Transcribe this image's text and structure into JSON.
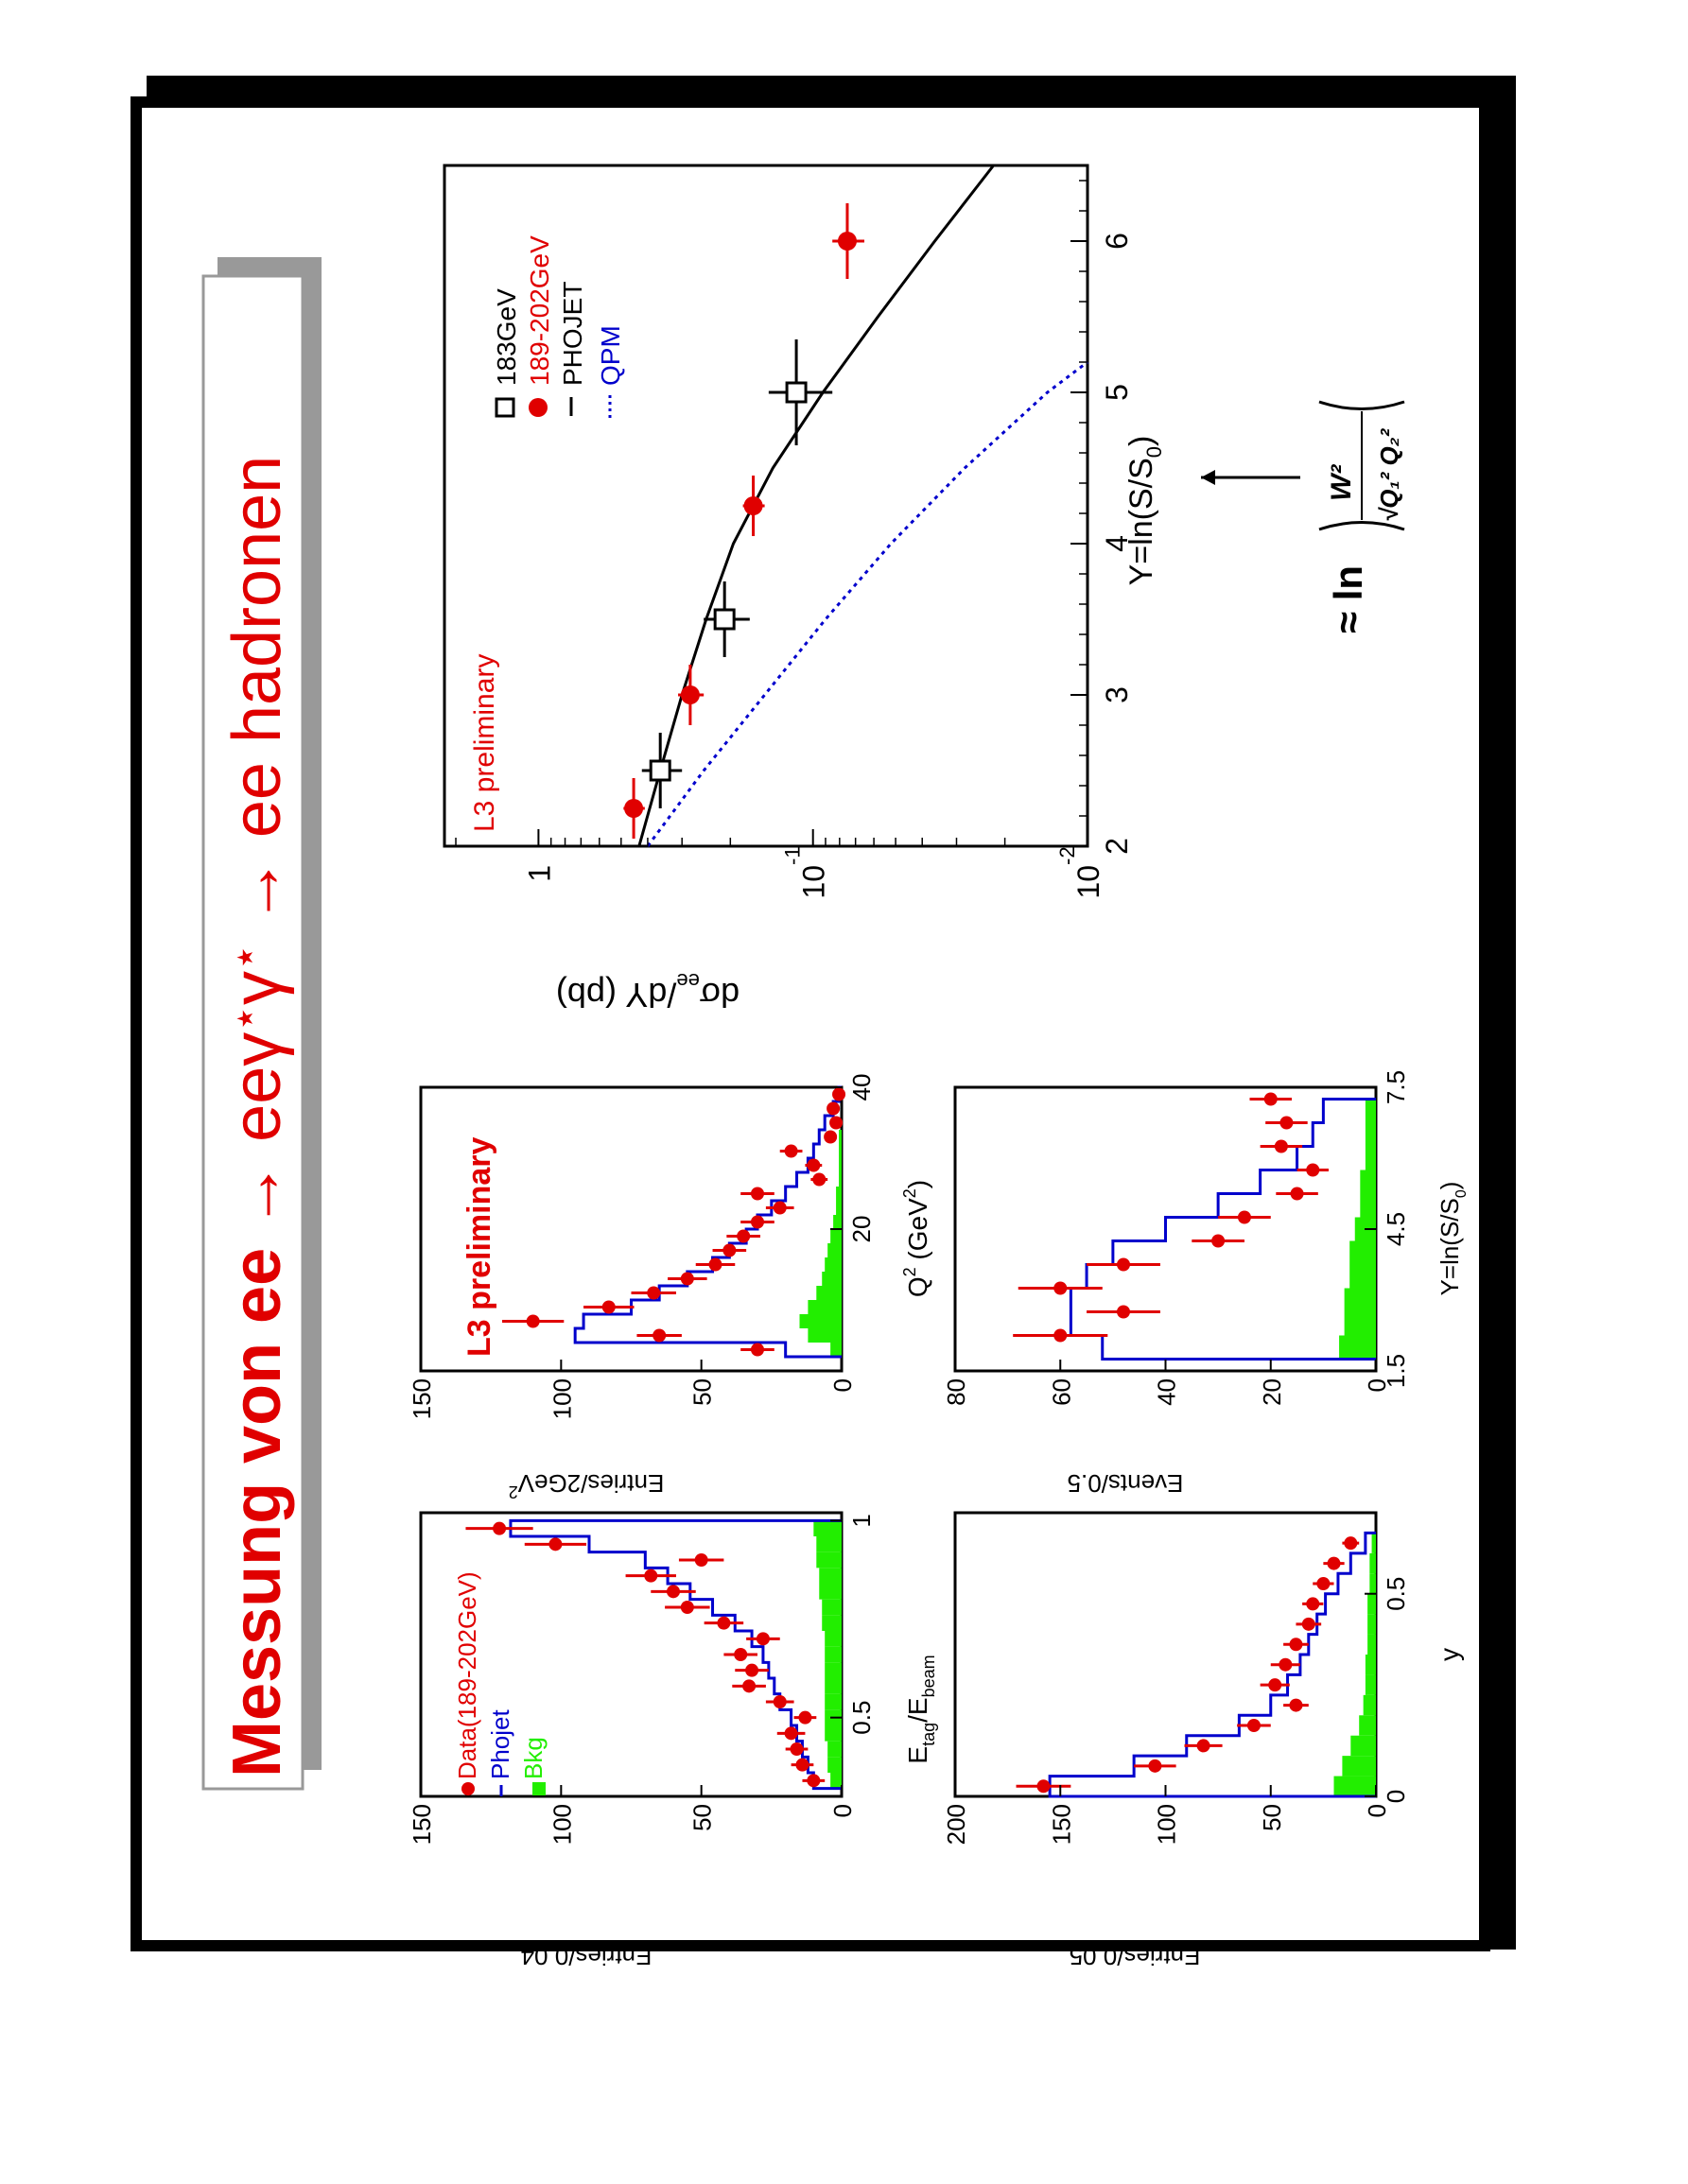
{
  "slide": {
    "title_part1": "Messung von ee ",
    "title_arrow1": "→",
    "title_part2": " eeγ",
    "title_star1": "⋆",
    "title_part3": "γ",
    "title_star2": "⋆",
    "title_arrow2": " → ",
    "title_part4": "ee hadronen",
    "approx_prefix": "≈ ln",
    "approx_numerator": "W²",
    "approx_denominator": "√Q₁² Q₂²",
    "colors": {
      "data": "#e00000",
      "phojet": "#0000cc",
      "bkg": "#22ee00",
      "frame": "#000000",
      "title_box_shadow": "#999999"
    }
  },
  "chart_data": [
    {
      "id": "etag",
      "type": "bar",
      "xlabel": "E",
      "xlabel_sub1": "tag",
      "xlabel_mid": "/E",
      "xlabel_sub2": "beam",
      "ylabel": "Entries/0.04",
      "xlim": [
        0.3,
        1.02
      ],
      "ylim": [
        0,
        150
      ],
      "xticks": [
        {
          "v": 0.5,
          "label": "0.5"
        },
        {
          "v": 1.0,
          "label": "1"
        }
      ],
      "yticks": [
        {
          "v": 0,
          "label": "0"
        },
        {
          "v": 50,
          "label": "50"
        },
        {
          "v": 100,
          "label": "100"
        },
        {
          "v": 150,
          "label": "150"
        }
      ],
      "legend": [
        {
          "marker": "dot",
          "label": "Data(189-202GeV)"
        },
        {
          "marker": "line",
          "label": "Phojet"
        },
        {
          "marker": "box",
          "label": "Bkg"
        }
      ],
      "data_x": [
        0.34,
        0.38,
        0.42,
        0.46,
        0.5,
        0.54,
        0.58,
        0.62,
        0.66,
        0.7,
        0.74,
        0.78,
        0.82,
        0.86,
        0.9,
        0.94,
        0.98
      ],
      "data_y": [
        10,
        14,
        16,
        18,
        13,
        22,
        33,
        32,
        36,
        28,
        42,
        55,
        60,
        68,
        50,
        102,
        122
      ],
      "data_err": [
        4,
        4,
        4,
        5,
        4,
        5,
        6,
        6,
        6,
        6,
        7,
        8,
        8,
        9,
        8,
        11,
        12
      ],
      "phojet_edges": [
        0.32,
        0.36,
        0.4,
        0.44,
        0.48,
        0.52,
        0.56,
        0.6,
        0.64,
        0.68,
        0.72,
        0.76,
        0.8,
        0.84,
        0.88,
        0.92,
        0.96,
        1.0
      ],
      "phojet_y": [
        10,
        12,
        14,
        16,
        18,
        22,
        24,
        26,
        28,
        32,
        38,
        46,
        54,
        62,
        70,
        90,
        118
      ],
      "bkg_y": [
        4,
        5,
        5,
        6,
        6,
        6,
        6,
        6,
        6,
        6,
        7,
        7,
        8,
        8,
        9,
        9,
        10
      ]
    },
    {
      "id": "q2",
      "type": "bar",
      "xlabel": "Q",
      "xlabel_sup": "2",
      "xlabel_rest": " (GeV",
      "xlabel_sup2": "2",
      "xlabel_end": ")",
      "ylabel": "Entries/2GeV",
      "ylabel_sup": "2",
      "annotation": "L3 preliminary",
      "xlim": [
        0,
        40
      ],
      "ylim": [
        0,
        150
      ],
      "xticks": [
        {
          "v": 20,
          "label": "20"
        },
        {
          "v": 40,
          "label": "40"
        }
      ],
      "yticks": [
        {
          "v": 0,
          "label": "0"
        },
        {
          "v": 50,
          "label": "50"
        },
        {
          "v": 100,
          "label": "100"
        },
        {
          "v": 150,
          "label": "150"
        }
      ],
      "data_x": [
        3,
        5,
        7,
        9,
        11,
        13,
        15,
        17,
        19,
        21,
        23,
        25,
        27,
        29,
        31,
        33,
        35,
        37,
        39
      ],
      "data_y": [
        30,
        65,
        110,
        83,
        67,
        55,
        45,
        40,
        35,
        30,
        22,
        30,
        8,
        10,
        18,
        4,
        2,
        3,
        1
      ],
      "data_err": [
        6,
        8,
        11,
        9,
        8,
        7,
        7,
        6,
        6,
        6,
        5,
        6,
        3,
        3,
        4,
        2,
        2,
        2,
        1
      ],
      "phojet_edges": [
        2,
        4,
        6,
        8,
        10,
        12,
        14,
        16,
        18,
        20,
        22,
        24,
        26,
        28,
        30,
        32,
        34,
        36,
        38,
        40
      ],
      "phojet_y": [
        20,
        95,
        92,
        75,
        65,
        55,
        46,
        40,
        34,
        30,
        25,
        20,
        16,
        12,
        10,
        8,
        6,
        3,
        1
      ],
      "bkg_y": [
        4,
        12,
        15,
        12,
        9,
        7,
        6,
        5,
        4,
        3,
        2,
        2,
        1,
        1,
        1,
        1,
        0,
        0,
        0
      ]
    },
    {
      "id": "ybj",
      "type": "bar",
      "xlabel": "y",
      "ylabel": "Entries/0.05",
      "xlim": [
        0,
        0.7
      ],
      "ylim": [
        0,
        200
      ],
      "xticks": [
        {
          "v": 0,
          "label": "0"
        },
        {
          "v": 0.5,
          "label": "0.5"
        }
      ],
      "yticks": [
        {
          "v": 0,
          "label": "0"
        },
        {
          "v": 50,
          "label": "50"
        },
        {
          "v": 100,
          "label": "100"
        },
        {
          "v": 150,
          "label": "150"
        },
        {
          "v": 200,
          "label": "200"
        }
      ],
      "data_x": [
        0.025,
        0.075,
        0.125,
        0.175,
        0.225,
        0.275,
        0.325,
        0.375,
        0.425,
        0.475,
        0.525,
        0.575,
        0.625
      ],
      "data_y": [
        158,
        105,
        82,
        58,
        38,
        48,
        43,
        38,
        32,
        30,
        25,
        20,
        12
      ],
      "data_err": [
        13,
        10,
        9,
        8,
        6,
        7,
        7,
        6,
        6,
        5,
        5,
        5,
        4
      ],
      "phojet_edges": [
        0,
        0.05,
        0.1,
        0.15,
        0.2,
        0.25,
        0.3,
        0.35,
        0.4,
        0.45,
        0.5,
        0.55,
        0.6,
        0.65
      ],
      "phojet_y": [
        155,
        115,
        90,
        65,
        50,
        42,
        36,
        32,
        28,
        24,
        18,
        12,
        5
      ],
      "bkg_y": [
        20,
        16,
        12,
        8,
        6,
        5,
        5,
        4,
        4,
        4,
        3,
        3,
        2
      ]
    },
    {
      "id": "ylog",
      "type": "bar",
      "xlabel": "Y=ln(S/S",
      "xlabel_sub": "0",
      "xlabel_end": ")",
      "ylabel": "Events/0.5",
      "xlim": [
        1.5,
        7.5
      ],
      "ylim": [
        0,
        80
      ],
      "xticks": [
        {
          "v": 1.5,
          "label": "1.5"
        },
        {
          "v": 4.5,
          "label": "4.5"
        },
        {
          "v": 7.5,
          "label": "7.5"
        }
      ],
      "yticks": [
        {
          "v": 0,
          "label": "0"
        },
        {
          "v": 20,
          "label": "20"
        },
        {
          "v": 40,
          "label": "40"
        },
        {
          "v": 60,
          "label": "60"
        },
        {
          "v": 80,
          "label": "80"
        }
      ],
      "data_x": [
        2.25,
        2.75,
        3.25,
        3.75,
        4.25,
        4.75,
        5.25,
        5.75,
        6.25,
        6.75,
        7.25
      ],
      "data_y": [
        60,
        48,
        60,
        48,
        30,
        25,
        15,
        12,
        18,
        17,
        20
      ],
      "data_err": [
        9,
        7,
        8,
        7,
        5,
        5,
        4,
        3,
        4,
        4,
        4
      ],
      "phojet_edges": [
        1.75,
        2.25,
        2.75,
        3.25,
        3.75,
        4.25,
        4.75,
        5.25,
        5.75,
        6.25,
        6.75,
        7.25
      ],
      "phojet_y": [
        52,
        58,
        58,
        55,
        50,
        40,
        30,
        22,
        15,
        12,
        10
      ],
      "bkg_y": [
        7,
        6,
        6,
        5,
        5,
        4,
        3,
        3,
        2,
        2,
        2
      ]
    },
    {
      "id": "xsec",
      "type": "scatter",
      "xlabel": "Y=ln(S/S",
      "xlabel_sub": "0",
      "xlabel_end": ")",
      "ylabel": "dσ",
      "ylabel_sub": "ee",
      "ylabel_end": "/dY (pb)",
      "annotation": "L3 preliminary",
      "scale": "log",
      "xlim": [
        2,
        6.5
      ],
      "ylim": [
        0.01,
        2.2
      ],
      "xticks": [
        {
          "v": 2,
          "label": "2"
        },
        {
          "v": 3,
          "label": "3"
        },
        {
          "v": 4,
          "label": "4"
        },
        {
          "v": 5,
          "label": "5"
        },
        {
          "v": 6,
          "label": "6"
        }
      ],
      "yticks": [
        {
          "v": 1,
          "label": "1",
          "exp": ""
        },
        {
          "v": 0.1,
          "label": "10",
          "exp": "-1"
        },
        {
          "v": 0.01,
          "label": "10",
          "exp": "-2"
        }
      ],
      "series": [
        {
          "name": "183GeV",
          "marker": "open-square",
          "x": [
            2.5,
            3.5,
            5.0
          ],
          "y": [
            0.36,
            0.21,
            0.115
          ],
          "yerr_lo": [
            0.06,
            0.04,
            0.03
          ],
          "yerr_hi": [
            0.06,
            0.04,
            0.03
          ],
          "xerr": [
            0.25,
            0.25,
            0.35
          ]
        },
        {
          "name": "189-202GeV",
          "marker": "filled-circle",
          "x": [
            2.25,
            3.0,
            4.25,
            6.0
          ],
          "y": [
            0.45,
            0.28,
            0.165,
            0.075
          ],
          "yerr_lo": [
            0.04,
            0.03,
            0.015,
            0.01
          ],
          "yerr_hi": [
            0.04,
            0.03,
            0.015,
            0.01
          ],
          "xerr": [
            0.2,
            0.2,
            0.2,
            0.25
          ]
        },
        {
          "name": "PHOJET",
          "marker": "solid-line",
          "x": [
            2.0,
            2.5,
            3.0,
            3.5,
            4.0,
            4.5,
            5.0,
            5.5,
            6.0,
            6.5
          ],
          "y": [
            0.43,
            0.36,
            0.3,
            0.245,
            0.195,
            0.14,
            0.092,
            0.058,
            0.036,
            0.022
          ]
        },
        {
          "name": "QPM",
          "marker": "dotted-line",
          "x": [
            2.0,
            2.5,
            3.0,
            3.5,
            4.0,
            4.5,
            5.0,
            5.2
          ],
          "y": [
            0.4,
            0.25,
            0.15,
            0.09,
            0.052,
            0.028,
            0.014,
            0.01
          ]
        }
      ]
    }
  ]
}
